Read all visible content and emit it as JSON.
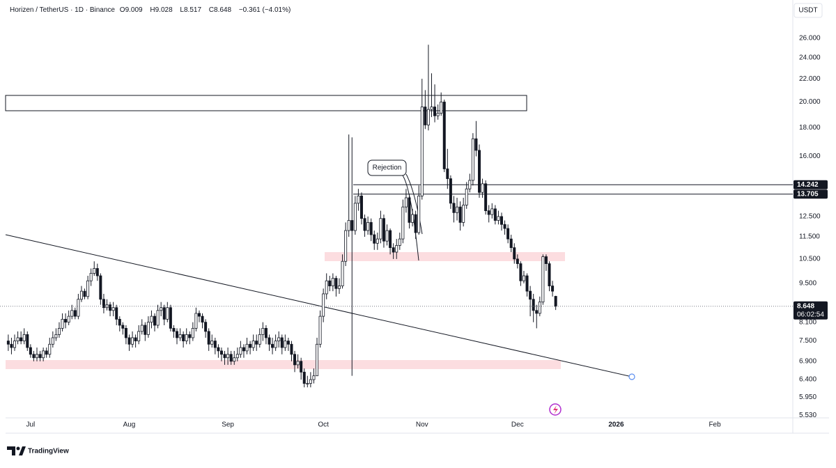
{
  "chart_data": {
    "type": "candlestick",
    "symbol": "Horizen / TetherUS · 1D · Binance",
    "legend_keys": [
      "O",
      "H",
      "L",
      "C"
    ],
    "change": "−0.361 (−4.01%)",
    "currency": "USDT",
    "countdown": "06:02:54",
    "annotation": "Rejection",
    "brand": "TradingView",
    "log_scale": true,
    "grid": false,
    "up_color": "#ffffff",
    "down_color": "#131722",
    "border_color": "#131722",
    "xlim": [
      -2.6,
      246.5
    ],
    "xticks": [
      {
        "value": 7,
        "label": "Jul"
      },
      {
        "value": 38,
        "label": "Aug"
      },
      {
        "value": 69,
        "label": "Sep"
      },
      {
        "value": 99,
        "label": "Oct"
      },
      {
        "value": 130,
        "label": "Nov"
      },
      {
        "value": 160,
        "label": "Dec"
      },
      {
        "value": 191,
        "label": "2026"
      },
      {
        "value": 222,
        "label": "Feb"
      }
    ],
    "ylim": [
      5.47,
      30.4
    ],
    "yticks": [
      {
        "value": 5.53,
        "label": "5.530"
      },
      {
        "value": 5.95,
        "label": "5.950"
      },
      {
        "value": 6.4,
        "label": "6.400"
      },
      {
        "value": 6.9,
        "label": "6.900"
      },
      {
        "value": 7.5,
        "label": "7.500"
      },
      {
        "value": 8.1,
        "label": "8.100"
      },
      {
        "value": 9.5,
        "label": "9.500"
      },
      {
        "value": 10.5,
        "label": "10.500"
      },
      {
        "value": 11.5,
        "label": "11.500"
      },
      {
        "value": 12.5,
        "label": "12.500"
      },
      {
        "value": 16,
        "label": "16.000"
      },
      {
        "value": 18,
        "label": "18.000"
      },
      {
        "value": 20,
        "label": "20.000"
      },
      {
        "value": 22,
        "label": "22.000"
      },
      {
        "value": 24,
        "label": "24.000"
      },
      {
        "value": 26,
        "label": "26.000"
      }
    ],
    "price_lines": [
      {
        "value": 14.242,
        "label": "14.242"
      },
      {
        "value": 13.705,
        "label": "13.705"
      }
    ],
    "open": [
      7.5,
      7.4,
      7.3,
      7.5,
      7.6,
      7.5,
      7.7,
      7.3,
      7.1,
      7.0,
      7.1,
      7.0,
      7.2,
      7.1,
      7.4,
      7.6,
      7.7,
      7.9,
      8.2,
      8.1,
      8.3,
      8.5,
      8.3,
      8.9,
      9.2,
      9.0,
      9.6,
      9.9,
      10.1,
      9.8,
      8.9,
      8.6,
      8.7,
      8.5,
      8.6,
      8.2,
      8.0,
      7.9,
      7.6,
      7.4,
      7.6,
      7.5,
      7.8,
      8.0,
      7.7,
      8.1,
      8.3,
      8.0,
      8.5,
      8.6,
      8.2,
      8.6,
      7.9,
      7.8,
      7.6,
      7.7,
      7.5,
      7.7,
      7.6,
      7.9,
      8.4,
      8.3,
      8.1,
      7.8,
      7.4,
      7.5,
      7.3,
      7.2,
      7.1,
      7.0,
      7.1,
      6.9,
      7.0,
      7.1,
      7.3,
      7.2,
      7.4,
      7.3,
      7.5,
      7.4,
      7.7,
      7.9,
      7.6,
      7.4,
      7.3,
      7.5,
      7.6,
      7.3,
      7.5,
      7.4,
      7.1,
      6.8,
      6.9,
      6.6,
      6.3,
      6.3,
      6.4,
      6.5,
      7.4,
      8.3,
      9.1,
      9.6,
      9.4,
      9.7,
      9.3,
      9.4,
      10.4,
      11.8,
      12.3,
      11.8,
      13.2,
      13.6,
      12.4,
      11.8,
      12.2,
      11.6,
      11.2,
      11.4,
      12.4,
      11.3,
      11.8,
      11.0,
      10.8,
      11.1,
      11.4,
      13.0,
      13.5,
      12.2,
      12.6,
      11.7,
      13.6,
      19.6,
      18.2,
      19.4,
      19.6,
      18.9,
      19.1,
      20.0,
      15.2,
      14.6,
      13.2,
      12.7,
      13.0,
      12.2,
      13.1,
      14.0,
      14.5,
      17.2,
      16.4,
      13.8,
      14.3,
      12.8,
      12.6,
      12.9,
      12.3,
      12.5,
      12.1,
      11.9,
      11.4,
      11.0,
      10.5,
      10.3,
      9.6,
      9.8,
      9.2,
      8.9,
      8.5,
      8.4,
      8.8,
      10.6,
      10.3,
      9.4,
      9.009
    ],
    "high": [
      7.7,
      7.6,
      7.7,
      7.8,
      7.8,
      7.9,
      7.8,
      7.4,
      7.2,
      7.3,
      7.2,
      7.3,
      7.3,
      7.6,
      7.8,
      7.9,
      8.1,
      8.4,
      8.4,
      8.5,
      8.7,
      8.6,
      9.1,
      9.4,
      9.3,
      9.8,
      10.1,
      10.4,
      10.3,
      9.9,
      9.1,
      8.9,
      8.8,
      8.8,
      8.7,
      8.3,
      8.1,
      8.0,
      7.7,
      7.8,
      7.7,
      8.0,
      8.2,
      8.1,
      8.3,
      8.5,
      8.4,
      8.7,
      8.8,
      8.7,
      8.8,
      8.7,
      8.0,
      7.9,
      7.9,
      7.8,
      7.9,
      7.8,
      8.1,
      8.6,
      8.5,
      8.4,
      8.2,
      7.9,
      7.7,
      7.6,
      7.4,
      7.3,
      7.2,
      7.3,
      7.2,
      7.2,
      7.3,
      7.5,
      7.4,
      7.6,
      7.5,
      7.7,
      7.7,
      7.9,
      8.1,
      8.0,
      7.7,
      7.6,
      7.7,
      7.8,
      7.7,
      7.7,
      7.6,
      7.5,
      7.2,
      7.1,
      7.0,
      6.7,
      6.5,
      6.6,
      6.7,
      7.6,
      8.5,
      9.3,
      9.9,
      9.8,
      9.9,
      9.8,
      9.7,
      10.7,
      12.2,
      17.5,
      17.3,
      13.6,
      14.0,
      13.8,
      12.6,
      12.5,
      12.4,
      11.8,
      11.7,
      12.8,
      12.6,
      12.1,
      11.9,
      11.2,
      11.4,
      11.7,
      13.4,
      14.0,
      13.7,
      12.9,
      12.8,
      14.2,
      22.0,
      21.0,
      25.3,
      22.5,
      21.5,
      19.8,
      20.8,
      20.2,
      16.5,
      14.8,
      13.6,
      13.5,
      13.3,
      13.5,
      14.4,
      14.9,
      17.6,
      18.5,
      16.8,
      14.6,
      14.5,
      13.1,
      13.2,
      13.1,
      12.8,
      12.7,
      12.3,
      12.1,
      11.6,
      11.2,
      10.7,
      10.4,
      10.0,
      9.9,
      9.4,
      9.1,
      8.7,
      9.0,
      10.7,
      10.7,
      10.4,
      9.6,
      9.028
    ],
    "low": [
      7.2,
      7.1,
      7.2,
      7.4,
      7.4,
      7.4,
      7.2,
      7.0,
      6.9,
      6.9,
      6.9,
      6.9,
      7.0,
      7.0,
      7.3,
      7.5,
      7.6,
      7.8,
      7.9,
      8.0,
      8.2,
      8.2,
      8.2,
      8.8,
      8.9,
      8.9,
      9.4,
      9.8,
      9.6,
      8.7,
      8.4,
      8.5,
      8.3,
      8.3,
      8.0,
      7.8,
      7.7,
      7.4,
      7.2,
      7.3,
      7.3,
      7.4,
      7.7,
      7.5,
      7.6,
      7.9,
      7.8,
      7.9,
      8.3,
      8.0,
      8.1,
      7.8,
      7.6,
      7.4,
      7.5,
      7.3,
      7.4,
      7.4,
      7.5,
      7.8,
      8.1,
      7.9,
      7.6,
      7.2,
      7.3,
      7.1,
      7.0,
      6.9,
      6.8,
      6.8,
      6.8,
      6.8,
      6.9,
      7.0,
      7.0,
      7.1,
      7.1,
      7.2,
      7.2,
      7.3,
      7.5,
      7.4,
      7.2,
      7.1,
      7.2,
      7.3,
      7.1,
      7.2,
      7.2,
      6.9,
      6.6,
      6.7,
      6.4,
      6.2,
      6.2,
      6.2,
      6.3,
      6.5,
      7.3,
      8.1,
      8.9,
      9.2,
      9.2,
      9.0,
      9.1,
      9.3,
      10.2,
      11.5,
      6.5,
      11.6,
      12.8,
      12.1,
      11.5,
      11.6,
      11.3,
      10.9,
      10.9,
      11.2,
      11.0,
      11.1,
      10.7,
      10.5,
      10.5,
      10.9,
      11.2,
      12.7,
      11.9,
      12.0,
      11.4,
      11.6,
      13.4,
      17.9,
      17.8,
      18.8,
      18.4,
      18.6,
      18.9,
      15.0,
      14.0,
      12.9,
      12.2,
      12.3,
      11.8,
      12.0,
      12.9,
      13.8,
      14.2,
      16.0,
      13.5,
      13.5,
      12.6,
      12.2,
      12.4,
      12.1,
      12.1,
      11.8,
      11.6,
      11.2,
      10.8,
      10.3,
      10.1,
      9.4,
      9.5,
      9.0,
      8.3,
      8.1,
      7.9,
      8.3,
      8.7,
      10.0,
      9.2,
      9.0,
      8.517
    ],
    "close": [
      7.4,
      7.3,
      7.5,
      7.6,
      7.5,
      7.7,
      7.3,
      7.1,
      7.0,
      7.1,
      7.0,
      7.2,
      7.1,
      7.4,
      7.6,
      7.7,
      7.9,
      8.2,
      8.1,
      8.3,
      8.5,
      8.3,
      8.9,
      9.2,
      9.0,
      9.6,
      9.9,
      10.1,
      9.8,
      8.9,
      8.6,
      8.7,
      8.5,
      8.6,
      8.2,
      8.0,
      7.9,
      7.6,
      7.4,
      7.6,
      7.5,
      7.8,
      8.0,
      7.7,
      8.1,
      8.3,
      8.0,
      8.5,
      8.6,
      8.2,
      8.6,
      7.9,
      7.8,
      7.6,
      7.7,
      7.5,
      7.7,
      7.6,
      7.9,
      8.4,
      8.3,
      8.1,
      7.8,
      7.4,
      7.5,
      7.3,
      7.2,
      7.1,
      7.0,
      7.1,
      6.9,
      7.0,
      7.1,
      7.3,
      7.2,
      7.4,
      7.3,
      7.5,
      7.4,
      7.7,
      7.9,
      7.6,
      7.4,
      7.3,
      7.5,
      7.6,
      7.3,
      7.5,
      7.4,
      7.1,
      6.8,
      6.9,
      6.6,
      6.3,
      6.3,
      6.4,
      6.5,
      7.4,
      8.3,
      9.1,
      9.6,
      9.4,
      9.7,
      9.3,
      9.4,
      10.4,
      11.8,
      12.3,
      11.8,
      13.2,
      13.6,
      12.4,
      11.8,
      12.2,
      11.6,
      11.2,
      11.4,
      12.4,
      11.3,
      11.8,
      11.0,
      10.8,
      11.1,
      11.4,
      13.0,
      13.5,
      12.2,
      12.6,
      11.7,
      13.6,
      19.6,
      18.2,
      19.4,
      19.6,
      18.9,
      19.1,
      20.0,
      15.2,
      14.6,
      13.2,
      12.7,
      13.0,
      12.2,
      13.1,
      14.0,
      14.5,
      17.2,
      16.4,
      13.8,
      14.3,
      12.8,
      12.6,
      12.9,
      12.3,
      12.5,
      12.1,
      11.9,
      11.4,
      11.0,
      10.5,
      10.3,
      9.6,
      9.8,
      9.2,
      8.9,
      8.5,
      8.4,
      8.8,
      10.6,
      10.3,
      9.4,
      9.2,
      8.648
    ]
  }
}
